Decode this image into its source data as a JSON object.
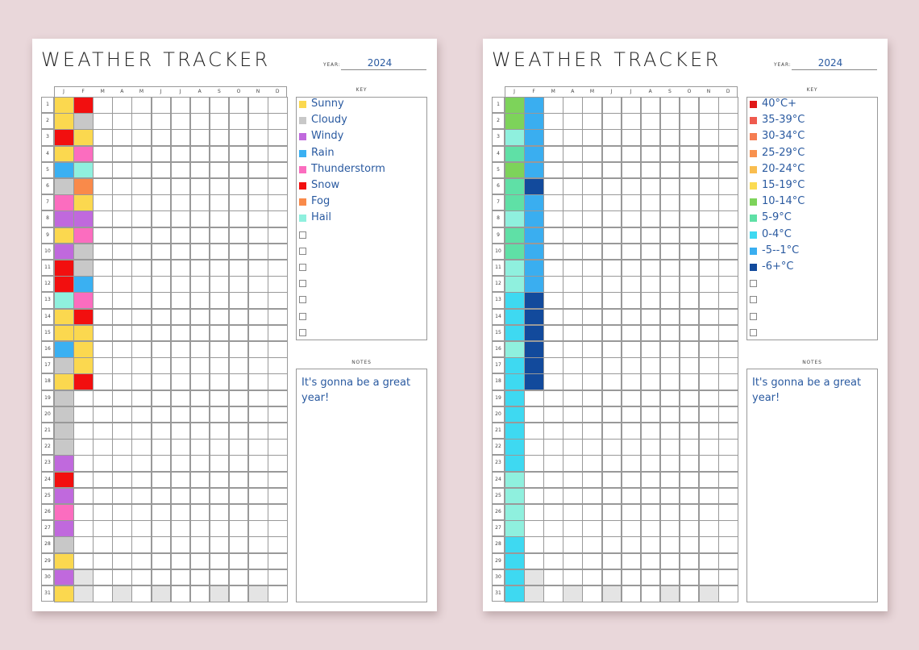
{
  "year_label": "YEAR:",
  "key_label": "KEY",
  "notes_label": "NOTES",
  "months": [
    "J",
    "F",
    "M",
    "A",
    "M",
    "J",
    "J",
    "A",
    "S",
    "O",
    "N",
    "D"
  ],
  "empty_fill": "#ffffff",
  "invalid_fill": "#e4e4e4",
  "sheets": [
    {
      "title": "WEATHER TRACKER",
      "year": "2024",
      "key": [
        {
          "label": "Sunny",
          "color": "#fbd84f"
        },
        {
          "label": "Cloudy",
          "color": "#c8c8c8"
        },
        {
          "label": "Windy",
          "color": "#c069dd"
        },
        {
          "label": "Rain",
          "color": "#3ab0f2"
        },
        {
          "label": "Thunderstorm",
          "color": "#fb6dbf"
        },
        {
          "label": "Snow",
          "color": "#f20f0f"
        },
        {
          "label": "Fog",
          "color": "#f98a4a"
        },
        {
          "label": "Hail",
          "color": "#8ff0de"
        },
        {
          "label": "",
          "color": ""
        },
        {
          "label": "",
          "color": ""
        },
        {
          "label": "",
          "color": ""
        },
        {
          "label": "",
          "color": ""
        },
        {
          "label": "",
          "color": ""
        },
        {
          "label": "",
          "color": ""
        },
        {
          "label": "",
          "color": ""
        }
      ],
      "notes": "It's gonna be a great year!",
      "entries": {
        "J": [
          "Sunny",
          "Sunny",
          "Snow",
          "Sunny",
          "Rain",
          "Cloudy",
          "Thunderstorm",
          "Windy",
          "Sunny",
          "Windy",
          "Snow",
          "Snow",
          "Hail",
          "Sunny",
          "Sunny",
          "Rain",
          "Cloudy",
          "Sunny",
          "Cloudy",
          "Cloudy",
          "Cloudy",
          "Cloudy",
          "Windy",
          "Snow",
          "Windy",
          "Thunderstorm",
          "Windy",
          "Cloudy",
          "Sunny",
          "Windy",
          "Sunny"
        ],
        "F": [
          "Snow",
          "Cloudy",
          "Sunny",
          "Thunderstorm",
          "Hail",
          "Fog",
          "Sunny",
          "Windy",
          "Thunderstorm",
          "Cloudy",
          "Cloudy",
          "Rain",
          "Thunderstorm",
          "Snow",
          "Sunny",
          "Sunny",
          "Sunny",
          "Snow"
        ]
      }
    },
    {
      "title": "WEATHER TRACKER",
      "year": "2024",
      "key": [
        {
          "label": "40°C+",
          "color": "#e01818"
        },
        {
          "label": "35-39°C",
          "color": "#ef5a4e"
        },
        {
          "label": "30-34°C",
          "color": "#f57d52"
        },
        {
          "label": "25-29°C",
          "color": "#f8914e"
        },
        {
          "label": "20-24°C",
          "color": "#f9bd4f"
        },
        {
          "label": "15-19°C",
          "color": "#fbdb52"
        },
        {
          "label": "10-14°C",
          "color": "#7dd35a"
        },
        {
          "label": "5-9°C",
          "color": "#5fe0a6"
        },
        {
          "label": "0-4°C",
          "color": "#3ed9f1"
        },
        {
          "label": "-5--1°C",
          "color": "#3aaef0"
        },
        {
          "label": "-6+°C",
          "color": "#124a9c"
        },
        {
          "label": "",
          "color": ""
        },
        {
          "label": "",
          "color": ""
        },
        {
          "label": "",
          "color": ""
        },
        {
          "label": "",
          "color": ""
        }
      ],
      "notes": "It's gonna be a great year!",
      "entries": {
        "J": [
          "10-14°C",
          "10-14°C",
          "Hail",
          "5-9°C",
          "10-14°C",
          "5-9°C",
          "5-9°C",
          "Hail",
          "5-9°C",
          "5-9°C",
          "Hail",
          "Hail",
          "0-4°C",
          "0-4°C",
          "0-4°C",
          "Hail",
          "0-4°C",
          "0-4°C",
          "0-4°C",
          "0-4°C",
          "0-4°C",
          "0-4°C",
          "0-4°C",
          "Hail",
          "Hail",
          "Hail",
          "Hail",
          "0-4°C",
          "0-4°C",
          "0-4°C",
          "0-4°C"
        ],
        "F": [
          "-5--1°C",
          "-5--1°C",
          "-5--1°C",
          "-5--1°C",
          "-5--1°C",
          "-6+°C",
          "-5--1°C",
          "-5--1°C",
          "-5--1°C",
          "-5--1°C",
          "-5--1°C",
          "-5--1°C",
          "-6+°C",
          "-6+°C",
          "-6+°C",
          "-6+°C",
          "-6+°C",
          "-6+°C"
        ]
      }
    }
  ]
}
